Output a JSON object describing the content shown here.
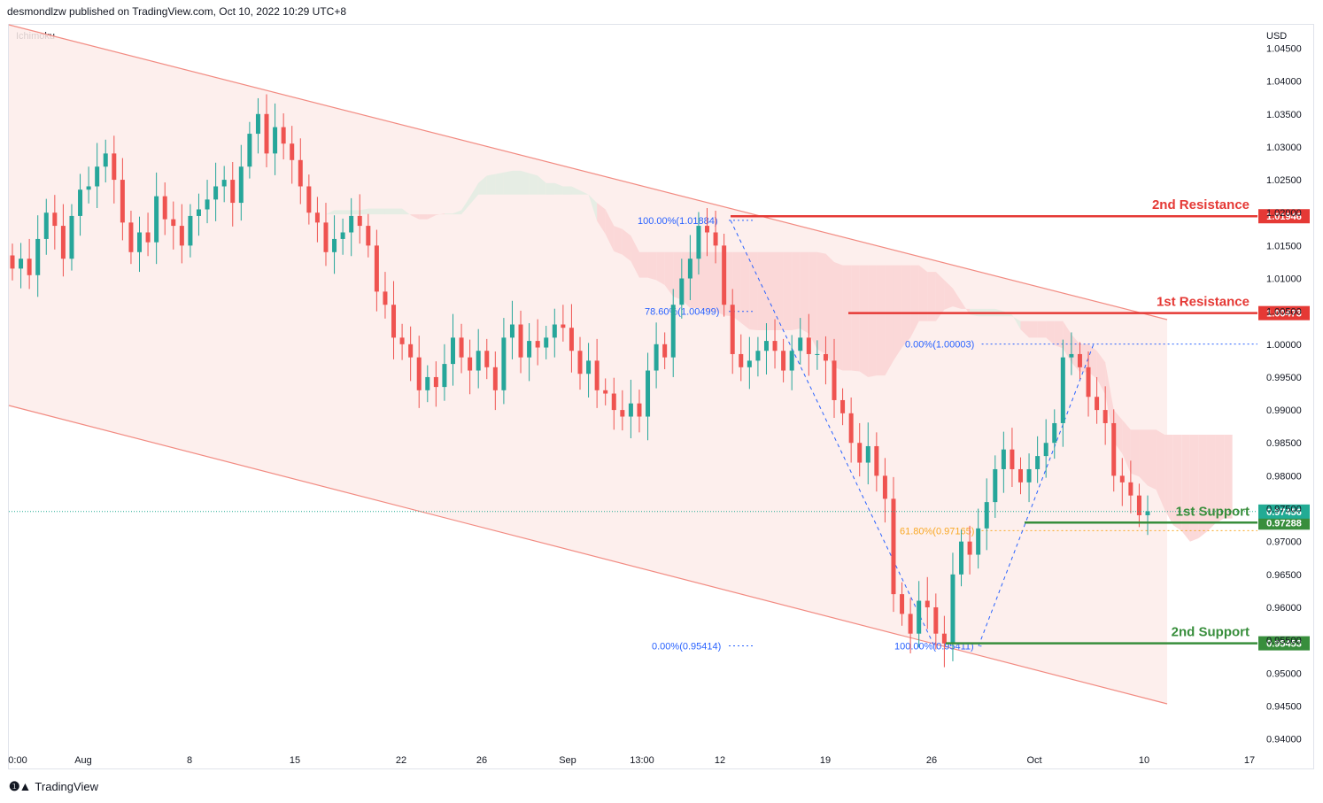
{
  "header": {
    "published": "desmondlzw published on TradingView.com, Oct 10, 2022 10:29 UTC+8",
    "indicator": "Ichimoku",
    "currency": "USD"
  },
  "footer": {
    "brand": "TradingView"
  },
  "colors": {
    "bull": "#26a69a",
    "bear": "#ef5350",
    "resistance": "#e53935",
    "support": "#388e3c",
    "fib": "#2962ff",
    "fib_golden": "#f9a825",
    "channel": "#f28b82",
    "channel_fill": "#fdecea",
    "cloud_bear": "#fbd5d5",
    "cloud_bull": "#e3ece2",
    "current_price": "#22ab94"
  },
  "chart_data": {
    "type": "candlestick",
    "y_axis": {
      "range": [
        0.9355,
        1.0487
      ],
      "ticks": [
        "1.04500",
        "1.04000",
        "1.03500",
        "1.03000",
        "1.02500",
        "1.02000",
        "1.01500",
        "1.01000",
        "1.00500",
        "1.00000",
        "0.99500",
        "0.99000",
        "0.98500",
        "0.98000",
        "0.97500",
        "0.97000",
        "0.96500",
        "0.96000",
        "0.95500",
        "0.95000",
        "0.94500",
        "0.94000"
      ],
      "tick_values": [
        1.045,
        1.04,
        1.035,
        1.03,
        1.025,
        1.02,
        1.015,
        1.01,
        1.005,
        1.0,
        0.995,
        0.99,
        0.985,
        0.98,
        0.975,
        0.97,
        0.965,
        0.96,
        0.955,
        0.95,
        0.945,
        0.94
      ]
    },
    "x_axis": {
      "ticks": [
        "0:00",
        "Aug",
        "8",
        "15",
        "22",
        "26",
        "Sep",
        "13:00",
        "12",
        "19",
        "26",
        "Oct",
        "10",
        "17"
      ]
    },
    "levels": [
      {
        "label": "2nd Resistance",
        "value": 1.01946,
        "tag": "1.01946",
        "kind": "resistance"
      },
      {
        "label": "1st Resistance",
        "value": 1.00473,
        "tag": "1.00473",
        "kind": "resistance"
      },
      {
        "label": "1st Support",
        "value": 0.97288,
        "tag": "0.97288",
        "kind": "support"
      },
      {
        "label": "2nd Support",
        "value": 0.95453,
        "tag": "0.95453",
        "kind": "support"
      }
    ],
    "current_price": {
      "value": 0.97456,
      "tag": "0.97456"
    },
    "fib_labels": [
      {
        "text": "100.00%(1.01884)",
        "value": 1.01884
      },
      {
        "text": "78.60%(1.00499)",
        "value": 1.00499
      },
      {
        "text": "0.00%(0.95414)",
        "value": 0.95414
      },
      {
        "text": "0.00%(1.00003)",
        "value": 1.00003
      },
      {
        "text": "61.80%(0.97165)",
        "value": 0.97165
      },
      {
        "text": "100.00%(0.95411)",
        "value": 0.95411
      }
    ],
    "close_path": [
      1.0115,
      1.013,
      1.0105,
      1.016,
      1.02,
      1.018,
      1.013,
      1.0195,
      1.0235,
      1.024,
      1.027,
      1.029,
      1.025,
      1.0185,
      1.014,
      1.017,
      1.0155,
      1.0225,
      1.019,
      1.018,
      1.015,
      1.0195,
      1.0205,
      1.022,
      1.024,
      1.025,
      1.0215,
      1.027,
      1.032,
      1.035,
      1.029,
      1.033,
      1.0305,
      1.028,
      1.024,
      1.02,
      1.0185,
      1.014,
      1.016,
      1.017,
      1.0195,
      1.018,
      1.015,
      1.008,
      1.006,
      1.001,
      1.0,
      0.998,
      0.993,
      0.995,
      0.9935,
      0.997,
      1.001,
      0.998,
      0.996,
      0.999,
      0.9965,
      0.993,
      1.001,
      1.003,
      0.998,
      1.0005,
      0.9995,
      1.001,
      1.003,
      1.0025,
      0.999,
      0.9955,
      0.9975,
      0.993,
      0.9925,
      0.99,
      0.989,
      0.991,
      0.989,
      0.996,
      1.0,
      0.998,
      1.006,
      1.01,
      1.013,
      1.018,
      1.017,
      1.015,
      1.006,
      0.9985,
      0.9965,
      0.9975,
      0.999,
      1.0005,
      0.999,
      0.996,
      0.999,
      1.001,
      0.9985,
      0.9985,
      0.9975,
      0.9915,
      0.9895,
      0.985,
      0.982,
      0.9845,
      0.98,
      0.9765,
      0.962,
      0.959,
      0.956,
      0.961,
      0.96,
      0.956,
      0.9545,
      0.965,
      0.97,
      0.968,
      0.972,
      0.976,
      0.981,
      0.984,
      0.981,
      0.979,
      0.981,
      0.983,
      0.985,
      0.988,
      0.998,
      0.9985,
      0.9965,
      0.992,
      0.99,
      0.988,
      0.98,
      0.979,
      0.977,
      0.974,
      0.9746
    ]
  }
}
